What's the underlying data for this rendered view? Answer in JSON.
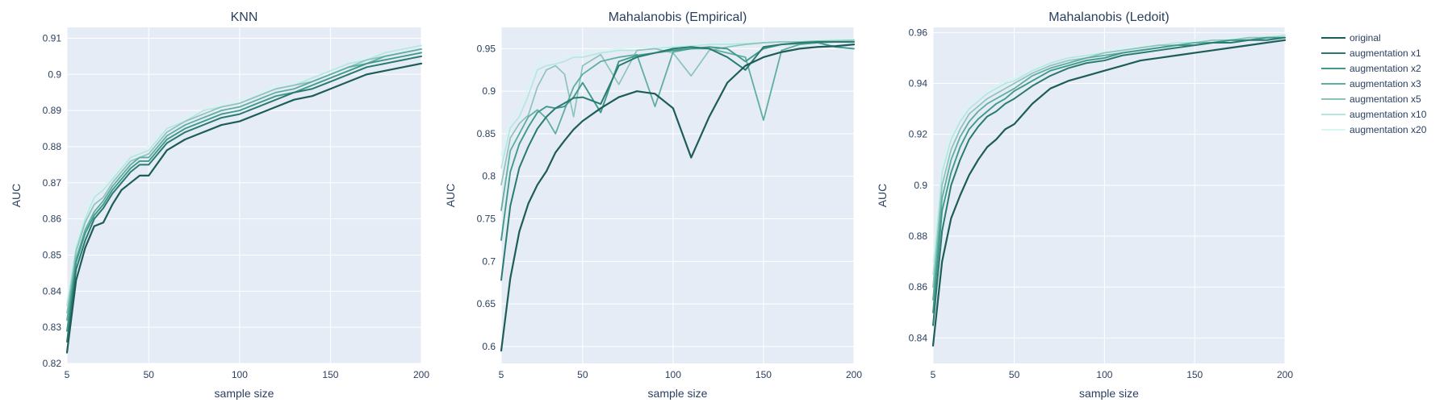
{
  "chart_data": [
    {
      "type": "line",
      "title": "KNN",
      "xlabel": "sample size",
      "ylabel": "AUC",
      "xlim": [
        5,
        200
      ],
      "ylim": [
        0.82,
        0.913
      ],
      "xticks": [
        5,
        50,
        100,
        150,
        200
      ],
      "yticks": [
        0.82,
        0.83,
        0.84,
        0.85,
        0.86,
        0.87,
        0.88,
        0.89,
        0.9,
        0.91
      ],
      "ytick_labels": [
        "0.82",
        "0.83",
        "0.84",
        "0.85",
        "0.86",
        "0.87",
        "0.88",
        "0.89",
        "0.9",
        "0.91"
      ],
      "grid": true,
      "x": [
        5,
        10,
        15,
        20,
        25,
        30,
        35,
        40,
        45,
        50,
        60,
        70,
        80,
        90,
        100,
        110,
        120,
        130,
        140,
        150,
        160,
        170,
        180,
        190,
        200
      ],
      "series": [
        {
          "name": "original",
          "values": [
            0.823,
            0.843,
            0.852,
            0.858,
            0.859,
            0.864,
            0.868,
            0.87,
            0.872,
            0.872,
            0.879,
            0.882,
            0.884,
            0.886,
            0.887,
            0.889,
            0.891,
            0.893,
            0.894,
            0.896,
            0.898,
            0.9,
            0.901,
            0.902,
            0.903
          ]
        },
        {
          "name": "augmentation x1",
          "values": [
            0.826,
            0.846,
            0.854,
            0.86,
            0.863,
            0.867,
            0.87,
            0.873,
            0.875,
            0.875,
            0.881,
            0.884,
            0.886,
            0.888,
            0.889,
            0.891,
            0.893,
            0.895,
            0.896,
            0.898,
            0.9,
            0.902,
            0.903,
            0.904,
            0.905
          ]
        },
        {
          "name": "augmentation x2",
          "values": [
            0.829,
            0.848,
            0.856,
            0.861,
            0.864,
            0.868,
            0.871,
            0.874,
            0.876,
            0.876,
            0.882,
            0.885,
            0.887,
            0.889,
            0.89,
            0.892,
            0.894,
            0.895,
            0.897,
            0.899,
            0.901,
            0.903,
            0.904,
            0.905,
            0.906
          ]
        },
        {
          "name": "augmentation x3",
          "values": [
            0.832,
            0.849,
            0.857,
            0.862,
            0.865,
            0.869,
            0.872,
            0.875,
            0.877,
            0.877,
            0.883,
            0.886,
            0.888,
            0.89,
            0.891,
            0.893,
            0.895,
            0.896,
            0.898,
            0.9,
            0.902,
            0.903,
            0.905,
            0.906,
            0.907
          ]
        },
        {
          "name": "augmentation x5",
          "values": [
            0.834,
            0.851,
            0.859,
            0.864,
            0.866,
            0.87,
            0.873,
            0.876,
            0.877,
            0.878,
            0.884,
            0.887,
            0.889,
            0.891,
            0.892,
            0.894,
            0.896,
            0.897,
            0.898,
            0.9,
            0.902,
            0.904,
            0.905,
            0.906,
            0.907
          ]
        },
        {
          "name": "augmentation x10",
          "values": [
            0.836,
            0.852,
            0.86,
            0.866,
            0.868,
            0.871,
            0.874,
            0.877,
            0.878,
            0.879,
            0.885,
            0.887,
            0.89,
            0.891,
            0.892,
            0.894,
            0.896,
            0.897,
            0.899,
            0.901,
            0.903,
            0.904,
            0.906,
            0.907,
            0.908
          ]
        },
        {
          "name": "augmentation x20",
          "values": [
            0.837,
            0.853,
            0.861,
            0.867,
            0.869,
            0.872,
            0.875,
            0.877,
            0.879,
            0.88,
            0.885,
            0.888,
            0.89,
            0.892,
            0.893,
            0.895,
            0.897,
            0.898,
            0.899,
            0.901,
            0.903,
            0.905,
            0.906,
            0.907,
            0.908
          ]
        }
      ]
    },
    {
      "type": "line",
      "title": "Mahalanobis (Empirical)",
      "xlabel": "sample size",
      "ylabel": "AUC",
      "xlim": [
        5,
        200
      ],
      "ylim": [
        0.58,
        0.975
      ],
      "xticks": [
        5,
        50,
        100,
        150,
        200
      ],
      "yticks": [
        0.6,
        0.65,
        0.7,
        0.75,
        0.8,
        0.85,
        0.9,
        0.95
      ],
      "ytick_labels": [
        "0.6",
        "0.65",
        "0.7",
        "0.75",
        "0.8",
        "0.85",
        "0.9",
        "0.95"
      ],
      "grid": true,
      "x": [
        5,
        10,
        15,
        20,
        25,
        30,
        35,
        40,
        45,
        50,
        60,
        70,
        80,
        90,
        100,
        110,
        120,
        130,
        140,
        150,
        160,
        170,
        180,
        190,
        200
      ],
      "series": [
        {
          "name": "original",
          "values": [
            0.595,
            0.68,
            0.735,
            0.768,
            0.79,
            0.806,
            0.828,
            0.842,
            0.855,
            0.865,
            0.88,
            0.893,
            0.9,
            0.897,
            0.88,
            0.822,
            0.87,
            0.91,
            0.93,
            0.94,
            0.946,
            0.95,
            0.952,
            0.953,
            0.955
          ]
        },
        {
          "name": "augmentation x1",
          "values": [
            0.678,
            0.765,
            0.81,
            0.835,
            0.856,
            0.87,
            0.88,
            0.886,
            0.892,
            0.893,
            0.885,
            0.93,
            0.94,
            0.945,
            0.95,
            0.952,
            0.95,
            0.94,
            0.925,
            0.952,
            0.955,
            0.957,
            0.958,
            0.958,
            0.958
          ]
        },
        {
          "name": "augmentation x2",
          "values": [
            0.725,
            0.805,
            0.838,
            0.858,
            0.875,
            0.882,
            0.88,
            0.882,
            0.893,
            0.91,
            0.875,
            0.935,
            0.942,
            0.945,
            0.948,
            0.95,
            0.952,
            0.95,
            0.935,
            0.95,
            0.955,
            0.956,
            0.957,
            0.952,
            0.95
          ]
        },
        {
          "name": "augmentation x3",
          "values": [
            0.76,
            0.83,
            0.85,
            0.87,
            0.878,
            0.868,
            0.85,
            0.878,
            0.905,
            0.92,
            0.935,
            0.94,
            0.943,
            0.882,
            0.946,
            0.95,
            0.95,
            0.945,
            0.94,
            0.866,
            0.948,
            0.955,
            0.957,
            0.958,
            0.958
          ]
        },
        {
          "name": "augmentation x5",
          "values": [
            0.79,
            0.845,
            0.862,
            0.872,
            0.905,
            0.925,
            0.93,
            0.92,
            0.87,
            0.93,
            0.943,
            0.908,
            0.948,
            0.95,
            0.945,
            0.918,
            0.948,
            0.952,
            0.955,
            0.957,
            0.958,
            0.958,
            0.959,
            0.959,
            0.96
          ]
        },
        {
          "name": "augmentation x10",
          "values": [
            0.81,
            0.857,
            0.87,
            0.895,
            0.925,
            0.93,
            0.932,
            0.935,
            0.94,
            0.94,
            0.945,
            0.948,
            0.948,
            0.95,
            0.952,
            0.953,
            0.955,
            0.955,
            0.956,
            0.957,
            0.958,
            0.958,
            0.959,
            0.96,
            0.96
          ]
        },
        {
          "name": "augmentation x20",
          "values": [
            0.825,
            0.865,
            0.88,
            0.905,
            0.932,
            0.936,
            0.938,
            0.94,
            0.942,
            0.945,
            0.948,
            0.95,
            0.952,
            0.953,
            0.954,
            0.955,
            0.956,
            0.957,
            0.958,
            0.958,
            0.959,
            0.959,
            0.96,
            0.96,
            0.961
          ]
        }
      ]
    },
    {
      "type": "line",
      "title": "Mahalanobis (Ledoit)",
      "xlabel": "sample size",
      "ylabel": "AUC",
      "xlim": [
        5,
        200
      ],
      "ylim": [
        0.83,
        0.962
      ],
      "xticks": [
        5,
        50,
        100,
        150,
        200
      ],
      "yticks": [
        0.84,
        0.86,
        0.88,
        0.9,
        0.92,
        0.94,
        0.96
      ],
      "ytick_labels": [
        "0.84",
        "0.86",
        "0.88",
        "0.9",
        "0.92",
        "0.94",
        "0.96"
      ],
      "grid": true,
      "x": [
        5,
        10,
        15,
        20,
        25,
        30,
        35,
        40,
        45,
        50,
        60,
        70,
        80,
        90,
        100,
        110,
        120,
        130,
        140,
        150,
        160,
        170,
        180,
        190,
        200
      ],
      "series": [
        {
          "name": "original",
          "values": [
            0.837,
            0.87,
            0.887,
            0.896,
            0.904,
            0.91,
            0.915,
            0.918,
            0.922,
            0.924,
            0.932,
            0.938,
            0.941,
            0.943,
            0.945,
            0.947,
            0.949,
            0.95,
            0.951,
            0.952,
            0.953,
            0.954,
            0.955,
            0.956,
            0.957
          ]
        },
        {
          "name": "augmentation x1",
          "values": [
            0.845,
            0.882,
            0.9,
            0.91,
            0.918,
            0.923,
            0.927,
            0.929,
            0.932,
            0.934,
            0.939,
            0.943,
            0.946,
            0.948,
            0.949,
            0.951,
            0.952,
            0.953,
            0.954,
            0.955,
            0.956,
            0.956,
            0.957,
            0.957,
            0.958
          ]
        },
        {
          "name": "augmentation x2",
          "values": [
            0.85,
            0.89,
            0.905,
            0.915,
            0.922,
            0.926,
            0.929,
            0.932,
            0.934,
            0.937,
            0.941,
            0.945,
            0.947,
            0.949,
            0.95,
            0.952,
            0.953,
            0.954,
            0.955,
            0.955,
            0.956,
            0.957,
            0.957,
            0.958,
            0.958
          ]
        },
        {
          "name": "augmentation x3",
          "values": [
            0.855,
            0.895,
            0.91,
            0.919,
            0.925,
            0.929,
            0.932,
            0.934,
            0.936,
            0.938,
            0.943,
            0.946,
            0.948,
            0.95,
            0.951,
            0.952,
            0.953,
            0.954,
            0.955,
            0.956,
            0.956,
            0.957,
            0.957,
            0.958,
            0.958
          ]
        },
        {
          "name": "augmentation x5",
          "values": [
            0.86,
            0.9,
            0.914,
            0.922,
            0.928,
            0.931,
            0.934,
            0.936,
            0.938,
            0.94,
            0.944,
            0.947,
            0.949,
            0.95,
            0.952,
            0.953,
            0.954,
            0.955,
            0.955,
            0.956,
            0.957,
            0.957,
            0.958,
            0.958,
            0.958
          ]
        },
        {
          "name": "augmentation x10",
          "values": [
            0.865,
            0.905,
            0.918,
            0.925,
            0.93,
            0.933,
            0.936,
            0.938,
            0.94,
            0.941,
            0.945,
            0.948,
            0.95,
            0.951,
            0.952,
            0.953,
            0.954,
            0.955,
            0.956,
            0.956,
            0.957,
            0.957,
            0.958,
            0.958,
            0.959
          ]
        },
        {
          "name": "augmentation x20",
          "values": [
            0.87,
            0.908,
            0.92,
            0.927,
            0.932,
            0.935,
            0.937,
            0.939,
            0.941,
            0.942,
            0.946,
            0.948,
            0.95,
            0.951,
            0.953,
            0.954,
            0.955,
            0.955,
            0.956,
            0.957,
            0.957,
            0.958,
            0.958,
            0.958,
            0.959
          ]
        }
      ]
    }
  ],
  "legend": {
    "placement": "top-right",
    "items": [
      {
        "label": "original",
        "color": "#1d5c57"
      },
      {
        "label": "augmentation x1",
        "color": "#2a7a71"
      },
      {
        "label": "augmentation x2",
        "color": "#3f9a8b"
      },
      {
        "label": "augmentation x3",
        "color": "#5fae9f"
      },
      {
        "label": "augmentation x5",
        "color": "#8ec3bb"
      },
      {
        "label": "augmentation x10",
        "color": "#b3e6df"
      },
      {
        "label": "augmentation x20",
        "color": "#d6f6f1"
      }
    ]
  }
}
